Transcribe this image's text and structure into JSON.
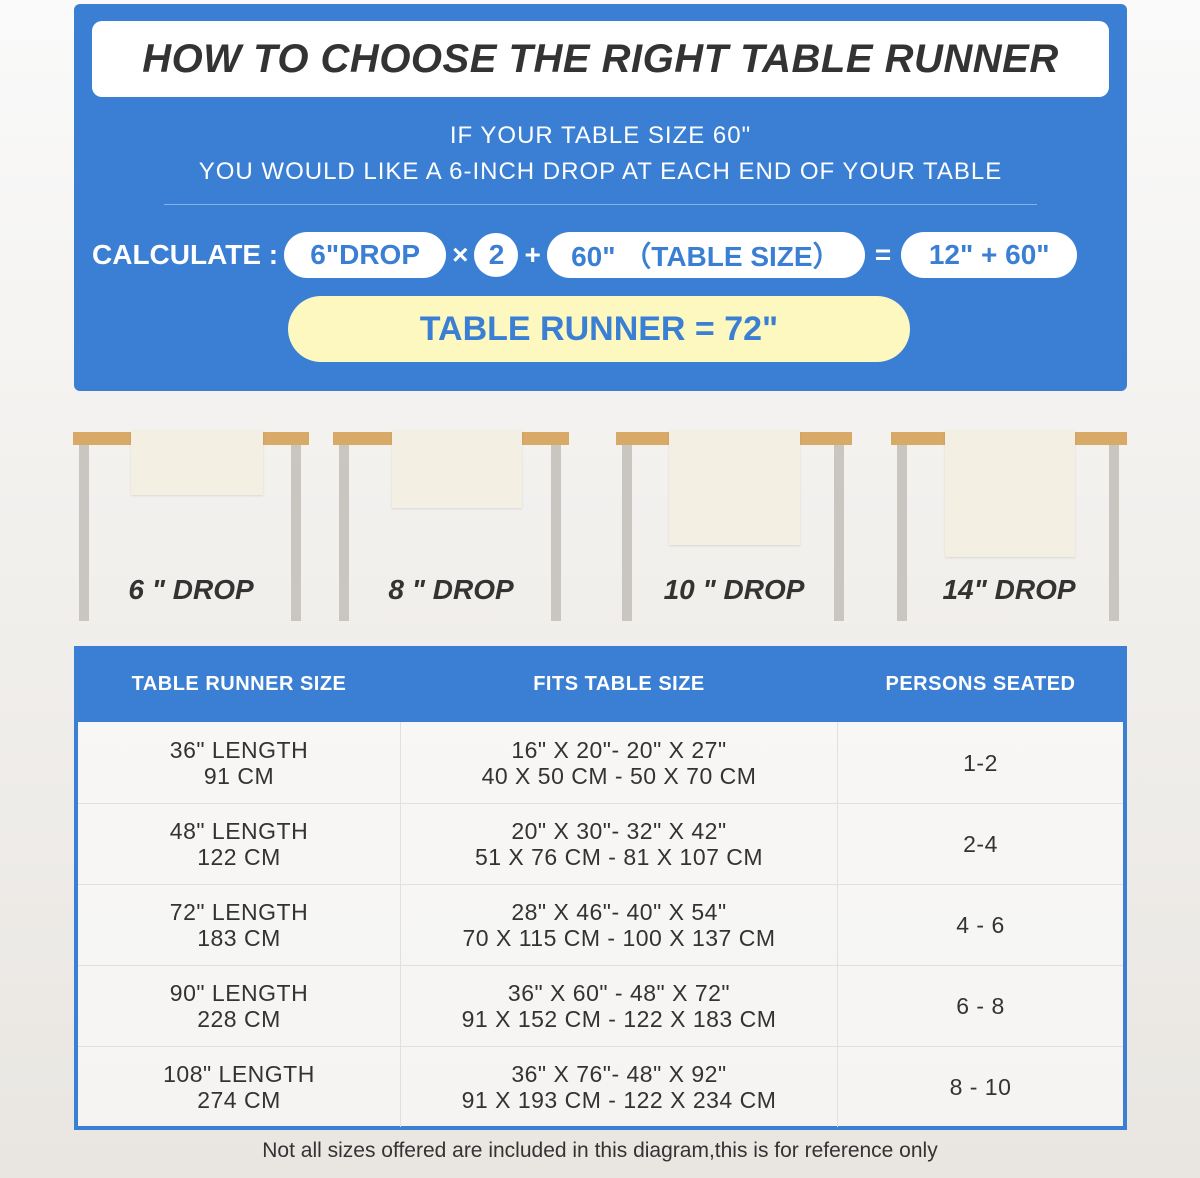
{
  "title": "HOW TO CHOOSE THE RIGHT TABLE RUNNER",
  "intro": {
    "line1": "IF YOUR TABLE SIZE 60\"",
    "line2": "YOU WOULD LIKE A 6-INCH DROP AT EACH END OF YOUR TABLE"
  },
  "calc": {
    "label": "CALCULATE :",
    "drop": "6\"DROP",
    "times": "×",
    "multiplier": "2",
    "plus": "+",
    "table": "60\" （TABLE SIZE）",
    "equals": "=",
    "sum": "12\" + 60\"",
    "result": "TABLE RUNNER = 72\""
  },
  "drops": [
    {
      "label": "6 \" DROP"
    },
    {
      "label": "8 \" DROP"
    },
    {
      "label": "10 \" DROP"
    },
    {
      "label": "14\" DROP"
    }
  ],
  "table": {
    "headers": [
      "TABLE RUNNER SIZE",
      "FITS TABLE SIZE",
      "PERSONS SEATED"
    ],
    "rows": [
      {
        "size1": "36\" LENGTH",
        "size2": "91 CM",
        "fit1": "16\" X 20\"- 20\" X 27\"",
        "fit2": "40 X 50 CM - 50 X 70 CM",
        "persons": "1-2"
      },
      {
        "size1": "48\" LENGTH",
        "size2": "122 CM",
        "fit1": "20\" X 30\"- 32\" X 42\"",
        "fit2": "51 X 76 CM - 81 X 107 CM",
        "persons": "2-4"
      },
      {
        "size1": "72\" LENGTH",
        "size2": "183 CM",
        "fit1": "28\" X 46\"- 40\" X 54\"",
        "fit2": "70 X 115 CM - 100 X 137 CM",
        "persons": "4 - 6"
      },
      {
        "size1": "90\" LENGTH",
        "size2": "228 CM",
        "fit1": "36\" X 60\" - 48\" X 72\"",
        "fit2": "91 X 152 CM - 122 X 183 CM",
        "persons": "6 - 8"
      },
      {
        "size1": "108\" LENGTH",
        "size2": "274 CM",
        "fit1": "36\" X 76\"- 48\" X 92\"",
        "fit2": "91 X 193 CM - 122 X 234 CM",
        "persons": "8 - 10"
      }
    ]
  },
  "note": "Not all sizes offered are included in this diagram,this is for reference only",
  "colors": {
    "accent": "#3a7fd3",
    "highlight": "#fdf7c0",
    "tabletop": "#d8a967"
  }
}
